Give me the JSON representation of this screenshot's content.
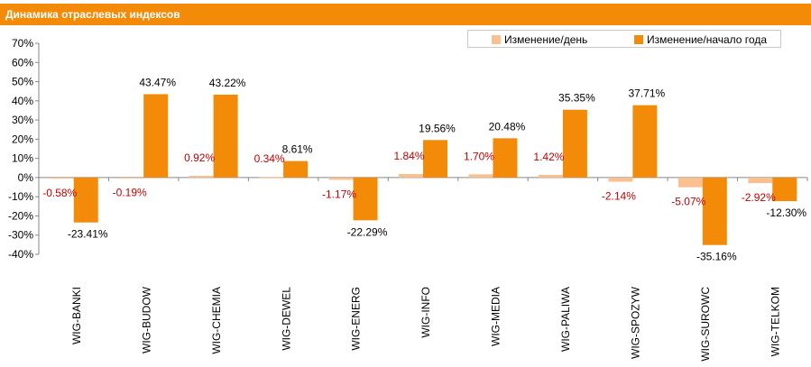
{
  "header": {
    "title": "Динамика отраслевых индексов"
  },
  "colors": {
    "title_bg": "#f38b09",
    "daily": "#fac090",
    "ytd": "#f38b09",
    "daily_label": "#c00000",
    "ytd_label": "#000000"
  },
  "chart_data": {
    "type": "bar",
    "title": "Динамика отраслевых индексов",
    "xlabel": "",
    "ylabel": "",
    "ylim": [
      -40,
      70
    ],
    "yticks": [
      "70%",
      "60%",
      "50%",
      "40%",
      "30%",
      "20%",
      "10%",
      "0%",
      "-10%",
      "-20%",
      "-30%",
      "-40%"
    ],
    "grid": false,
    "legend_position": "top-right",
    "categories": [
      "WIG-BANKI",
      "WIG-BUDOW",
      "WIG-CHEMIA",
      "WIG-DEWEL",
      "WIG-ENERG",
      "WIG-INFO",
      "WIG-MEDIA",
      "WIG-PALIWA",
      "WIG-SPOZYW",
      "WIG-SUROWC",
      "WIG-TELKOM"
    ],
    "series": [
      {
        "name": "Изменение/день",
        "values": [
          -0.58,
          -0.19,
          0.92,
          0.34,
          -1.17,
          1.84,
          1.7,
          1.42,
          -2.14,
          -5.07,
          -2.92
        ],
        "labels": [
          "-0.58%",
          "-0.19%",
          "0.92%",
          "0.34%",
          "-1.17%",
          "1.84%",
          "1.70%",
          "1.42%",
          "-2.14%",
          "-5.07%",
          "-2.92%"
        ]
      },
      {
        "name": "Изменение/начало года",
        "values": [
          -23.41,
          43.47,
          43.22,
          8.61,
          -22.29,
          19.56,
          20.48,
          35.35,
          37.71,
          -35.16,
          -12.3
        ],
        "labels": [
          "-23.41%",
          "43.47%",
          "43.22%",
          "8.61%",
          "-22.29%",
          "19.56%",
          "20.48%",
          "35.35%",
          "37.71%",
          "-35.16%",
          "-12.30%"
        ]
      }
    ]
  }
}
